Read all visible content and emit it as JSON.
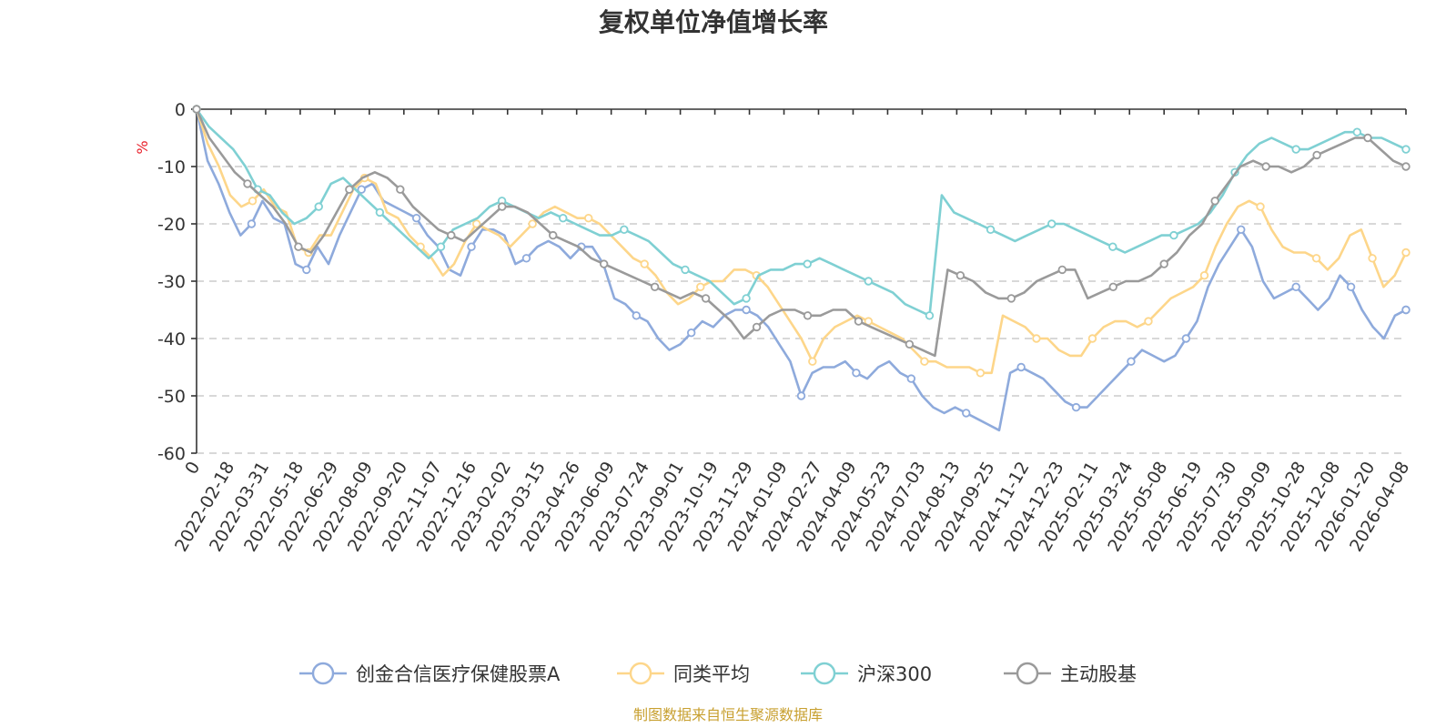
{
  "chart_data": {
    "type": "line",
    "title": "复权单位净值增长率",
    "ylabel": "%",
    "ylim": [
      -60,
      0
    ],
    "yticks": [
      0,
      -10,
      -20,
      -30,
      -40,
      -50,
      -60
    ],
    "ytick_labels": [
      "0",
      "-10",
      "-20",
      "-30",
      "-40",
      "-50",
      "-60"
    ],
    "xtick_labels": [
      "0",
      "2022-02-18",
      "2022-03-31",
      "2022-05-18",
      "2022-06-29",
      "2022-08-09",
      "2022-09-20",
      "2022-11-07",
      "2022-12-16",
      "2023-02-02",
      "2023-03-15",
      "2023-04-26",
      "2023-06-09",
      "2023-07-24",
      "2023-09-01",
      "2023-10-19",
      "2023-11-29",
      "2024-01-09",
      "2024-02-27",
      "2024-04-09",
      "2024-05-23",
      "2024-07-03",
      "2024-08-13",
      "2024-09-25",
      "2024-11-12",
      "2024-12-23",
      "2025-02-11",
      "2025-03-24",
      "2025-05-08",
      "2025-06-19",
      "2025-07-30",
      "2025-09-09",
      "2025-10-28",
      "2025-12-08",
      "2026-01-20",
      "2026-04-08"
    ],
    "legend_position": "bottom",
    "grid": true,
    "series": [
      {
        "name": "创金合信医疗保健股票A",
        "color": "#8eaadc",
        "values": [
          0,
          -9,
          -13,
          -18,
          -22,
          -20,
          -16,
          -19,
          -20,
          -27,
          -28,
          -24,
          -27,
          -22,
          -18,
          -14,
          -13,
          -16,
          -17,
          -18,
          -19,
          -22,
          -24,
          -28,
          -29,
          -24,
          -21,
          -21,
          -22,
          -27,
          -26,
          -24,
          -23,
          -24,
          -26,
          -24,
          -24,
          -27,
          -33,
          -34,
          -36,
          -37,
          -40,
          -42,
          -41,
          -39,
          -37,
          -38,
          -36,
          -35,
          -35,
          -36,
          -38,
          -41,
          -44,
          -50,
          -46,
          -45,
          -45,
          -44,
          -46,
          -47,
          -45,
          -44,
          -46,
          -47,
          -50,
          -52,
          -53,
          -52,
          -53,
          -54,
          -55,
          -56,
          -46,
          -45,
          -46,
          -47,
          -49,
          -51,
          -52,
          -52,
          -50,
          -48,
          -46,
          -44,
          -42,
          -43,
          -44,
          -43,
          -40,
          -37,
          -31,
          -27,
          -24,
          -21,
          -24,
          -30,
          -33,
          -32,
          -31,
          -33,
          -35,
          -33,
          -29,
          -31,
          -35,
          -38,
          -40,
          -36,
          -35
        ]
      },
      {
        "name": "同类平均",
        "color": "#fdd68a",
        "values": [
          0,
          -6,
          -10,
          -15,
          -17,
          -16,
          -14,
          -17,
          -18,
          -24,
          -25,
          -22,
          -22,
          -18,
          -14,
          -12,
          -13,
          -18,
          -19,
          -22,
          -24,
          -26,
          -29,
          -27,
          -23,
          -20,
          -21,
          -22,
          -24,
          -22,
          -20,
          -18,
          -17,
          -18,
          -19,
          -19,
          -20,
          -22,
          -24,
          -26,
          -27,
          -29,
          -32,
          -34,
          -33,
          -31,
          -30,
          -30,
          -28,
          -28,
          -29,
          -31,
          -34,
          -37,
          -40,
          -44,
          -40,
          -38,
          -37,
          -36,
          -37,
          -38,
          -39,
          -40,
          -42,
          -44,
          -44,
          -45,
          -45,
          -45,
          -46,
          -46,
          -36,
          -37,
          -38,
          -40,
          -40,
          -42,
          -43,
          -43,
          -40,
          -38,
          -37,
          -37,
          -38,
          -37,
          -35,
          -33,
          -32,
          -31,
          -29,
          -24,
          -20,
          -17,
          -16,
          -17,
          -21,
          -24,
          -25,
          -25,
          -26,
          -28,
          -26,
          -22,
          -21,
          -26,
          -31,
          -29,
          -25
        ]
      },
      {
        "name": "沪深300",
        "color": "#7fd0d3",
        "values": [
          0,
          -3,
          -5,
          -7,
          -10,
          -14,
          -15,
          -18,
          -20,
          -19,
          -17,
          -13,
          -12,
          -14,
          -16,
          -18,
          -20,
          -22,
          -24,
          -26,
          -24,
          -21,
          -20,
          -19,
          -17,
          -16,
          -17,
          -18,
          -19,
          -18,
          -19,
          -20,
          -21,
          -22,
          -22,
          -21,
          -22,
          -23,
          -25,
          -27,
          -28,
          -29,
          -30,
          -32,
          -34,
          -33,
          -29,
          -28,
          -28,
          -27,
          -27,
          -26,
          -27,
          -28,
          -29,
          -30,
          -31,
          -32,
          -34,
          -35,
          -36,
          -15,
          -18,
          -19,
          -20,
          -21,
          -22,
          -23,
          -22,
          -21,
          -20,
          -20,
          -21,
          -22,
          -23,
          -24,
          -25,
          -24,
          -23,
          -22,
          -22,
          -21,
          -20,
          -18,
          -15,
          -11,
          -8,
          -6,
          -5,
          -6,
          -7,
          -7,
          -6,
          -5,
          -4,
          -4,
          -5,
          -5,
          -6,
          -7
        ]
      },
      {
        "name": "主动股基",
        "color": "#9a9a9a",
        "values": [
          0,
          -5,
          -8,
          -11,
          -13,
          -15,
          -17,
          -20,
          -24,
          -25,
          -22,
          -18,
          -14,
          -12,
          -11,
          -12,
          -14,
          -17,
          -19,
          -21,
          -22,
          -23,
          -21,
          -19,
          -17,
          -17,
          -18,
          -20,
          -22,
          -23,
          -24,
          -26,
          -27,
          -28,
          -29,
          -30,
          -31,
          -32,
          -33,
          -32,
          -33,
          -35,
          -37,
          -40,
          -38,
          -36,
          -35,
          -35,
          -36,
          -36,
          -35,
          -35,
          -37,
          -38,
          -39,
          -40,
          -41,
          -42,
          -43,
          -28,
          -29,
          -30,
          -32,
          -33,
          -33,
          -32,
          -30,
          -29,
          -28,
          -28,
          -33,
          -32,
          -31,
          -30,
          -30,
          -29,
          -27,
          -25,
          -22,
          -20,
          -16,
          -13,
          -10,
          -9,
          -10,
          -10,
          -11,
          -10,
          -8,
          -7,
          -6,
          -5,
          -5,
          -7,
          -9,
          -10
        ]
      }
    ],
    "source": "制图数据来自恒生聚源数据库"
  }
}
